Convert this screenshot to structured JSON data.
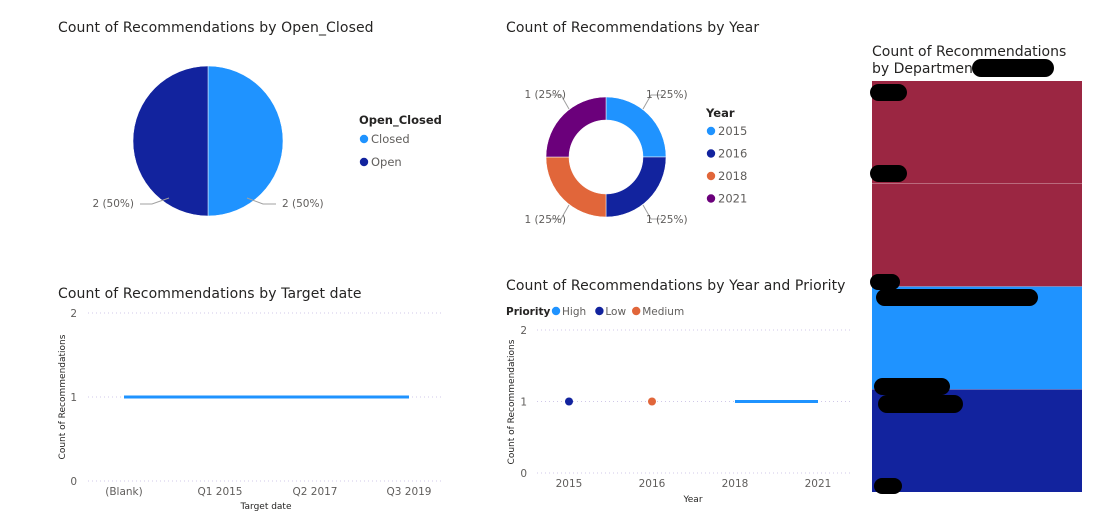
{
  "pie_open_closed": {
    "title": "Count of Recommendations by Open_Closed",
    "legend_title": "Open_Closed",
    "chart_data": {
      "type": "pie",
      "labels": [
        "Closed",
        "Open"
      ],
      "values": [
        2,
        2
      ],
      "data_labels": [
        "2 (50%)",
        "2 (50%)"
      ],
      "colors": [
        "#1f93ff",
        "#12239e"
      ],
      "legend_position": "right"
    }
  },
  "donut_year": {
    "title": "Count of Recommendations by Year",
    "legend_title": "Year",
    "chart_data": {
      "type": "pie",
      "labels": [
        "2015",
        "2016",
        "2018",
        "2021"
      ],
      "values": [
        1,
        1,
        1,
        1
      ],
      "data_labels": [
        "1 (25%)",
        "1 (25%)",
        "1 (25%)",
        "1 (25%)"
      ],
      "colors": [
        "#1f93ff",
        "#12239e",
        "#e1663a",
        "#6b007b"
      ],
      "legend_position": "right"
    }
  },
  "line_target": {
    "title": "Count of Recommendations by Target date",
    "ylabel": "Count of Recommendations",
    "xlabel": "Target date",
    "chart_data": {
      "type": "line",
      "categories": [
        "(Blank)",
        "Q1 2015",
        "Q2 2017",
        "Q3 2019"
      ],
      "values": [
        1,
        1,
        1,
        1
      ],
      "ylim": [
        0,
        2
      ],
      "yticks": [
        "0",
        "1",
        "2"
      ],
      "color": "#1f93ff",
      "grid": true
    }
  },
  "line_priority": {
    "title": "Count of Recommendations by Year and Priority",
    "legend_title": "Priority",
    "ylabel": "Count of Recommendations",
    "xlabel": "Year",
    "chart_data": {
      "type": "line",
      "categories": [
        "2015",
        "2016",
        "2018",
        "2021"
      ],
      "series": [
        {
          "name": "High",
          "color": "#1f93ff",
          "values": [
            null,
            null,
            1,
            1
          ]
        },
        {
          "name": "Low",
          "color": "#12239e",
          "values": [
            1,
            null,
            null,
            null
          ]
        },
        {
          "name": "Medium",
          "color": "#e1663a",
          "values": [
            null,
            1,
            null,
            null
          ]
        }
      ],
      "ylim": [
        0,
        2
      ],
      "yticks": [
        "0",
        "1",
        "2"
      ],
      "legend_position": "top-left",
      "grid": true
    }
  },
  "stacked_department": {
    "title": "Count of Recommendations by Department and",
    "chart_data": {
      "type": "bar",
      "stacked": true,
      "segments": [
        {
          "value": 1,
          "color": "#9b2642"
        },
        {
          "value": 1,
          "color": "#9b2642"
        },
        {
          "value": 1,
          "color": "#1f93ff"
        },
        {
          "value": 1,
          "color": "#12239e"
        }
      ]
    }
  }
}
